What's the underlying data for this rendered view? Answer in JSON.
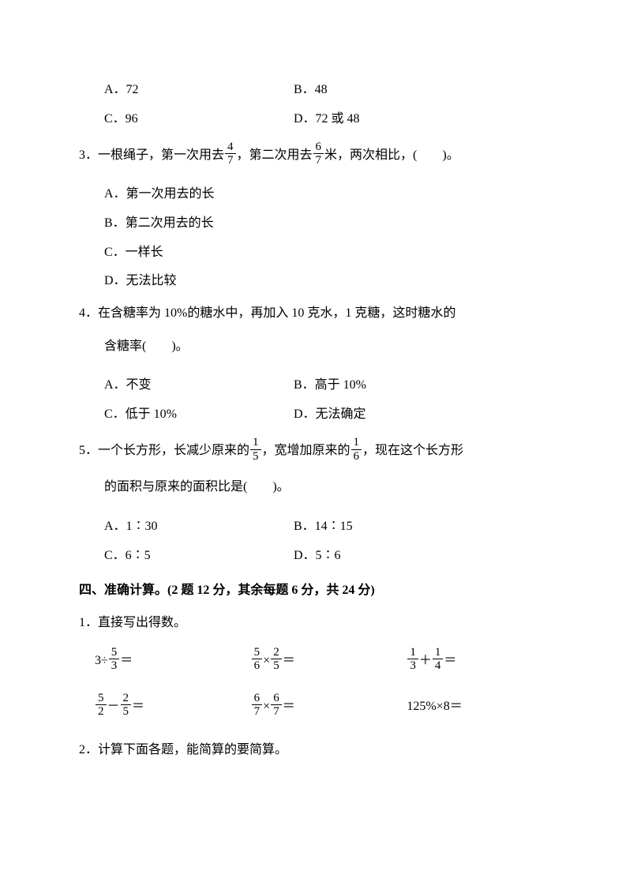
{
  "q2_options": {
    "a": "A．72",
    "b": "B．48",
    "c": "C．96",
    "d": "D．72 或 48"
  },
  "q3": {
    "prefix": "3．一根绳子，第一次用去",
    "frac1_num": "4",
    "frac1_den": "7",
    "mid1": "，第二次用去",
    "frac2_num": "6",
    "frac2_den": "7",
    "suffix": "米，两次相比，(　　)。",
    "a": "A．第一次用去的长",
    "b": "B．第二次用去的长",
    "c": "C．一样长",
    "d": "D．无法比较"
  },
  "q4": {
    "line1": "4．在含糖率为 10%的糖水中，再加入 10 克水，1 克糖，这时糖水的",
    "line2": "含糖率(　　)。",
    "a": "A．不变",
    "b": "B．高于 10%",
    "c": "C．低于 10%",
    "d": "D．无法确定"
  },
  "q5": {
    "prefix": "5．一个长方形，长减少原来的",
    "frac1_num": "1",
    "frac1_den": "5",
    "mid1": "，宽增加原来的",
    "frac2_num": "1",
    "frac2_den": "6",
    "suffix": "，现在这个长方形",
    "line2": "的面积与原来的面积比是(　　)。",
    "a": "A．1∶30",
    "b": "B．14∶15",
    "c": "C．6∶5",
    "d": "D．5∶6"
  },
  "section4": {
    "header": "四、准确计算。(2 题 12 分，其余每题 6 分，共 24 分)",
    "sub1": "1．直接写出得数。",
    "sub2": "2．计算下面各题，能简算的要简算。"
  },
  "calc": {
    "r1c1_pre": "3÷",
    "r1c1_num": "5",
    "r1c1_den": "3",
    "r1c1_post": "＝",
    "r1c2_f1n": "5",
    "r1c2_f1d": "6",
    "r1c2_op": "×",
    "r1c2_f2n": "2",
    "r1c2_f2d": "5",
    "r1c2_post": "＝",
    "r1c3_f1n": "1",
    "r1c3_f1d": "3",
    "r1c3_op": "＋",
    "r1c3_f2n": "1",
    "r1c3_f2d": "4",
    "r1c3_post": "＝",
    "r2c1_f1n": "5",
    "r2c1_f1d": "2",
    "r2c1_op": "－",
    "r2c1_f2n": "2",
    "r2c1_f2d": "5",
    "r2c1_post": "＝",
    "r2c2_f1n": "6",
    "r2c2_f1d": "7",
    "r2c2_op": "×",
    "r2c2_f2n": "6",
    "r2c2_f2d": "7",
    "r2c2_post": "＝",
    "r2c3": "125%×8＝"
  }
}
